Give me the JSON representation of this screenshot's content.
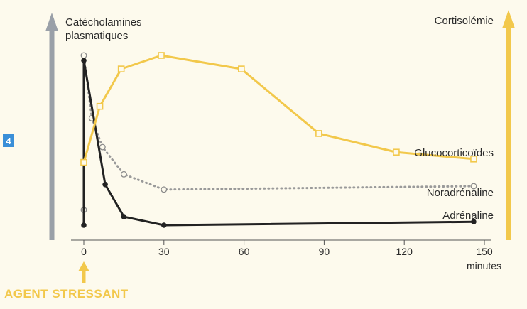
{
  "figure_number": "4",
  "chart_data": {
    "type": "line",
    "left_axis_label": [
      "Catécholamines",
      "plasmatiques"
    ],
    "right_axis_label": "Cortisolémie",
    "x_ticks": [
      0,
      30,
      60,
      90,
      120,
      150
    ],
    "x_unit": "minutes",
    "xlim": [
      0,
      150
    ],
    "stimulus_label": "AGENT STRESSANT",
    "series": [
      {
        "name": "Glucocorticoïdes",
        "axis": "right",
        "color": "#f2c84b",
        "style": "solid",
        "marker": "open-square",
        "x": [
          0,
          6,
          14,
          29,
          59,
          88,
          117,
          146
        ],
        "y": [
          0.37,
          0.7,
          0.92,
          1.0,
          0.92,
          0.54,
          0.43,
          0.39
        ]
      },
      {
        "name": "Noradrénaline",
        "axis": "left",
        "color": "#9a9a9a",
        "style": "dotted",
        "marker": "open-circle",
        "x": [
          0,
          0,
          3,
          7,
          15,
          30,
          146
        ],
        "y": [
          0.09,
          1.0,
          0.63,
          0.46,
          0.3,
          0.21,
          0.23
        ]
      },
      {
        "name": "Adrénaline",
        "axis": "left",
        "color": "#222222",
        "style": "solid",
        "marker": "filled-circle",
        "x": [
          0,
          0,
          8,
          15,
          30,
          146
        ],
        "y": [
          0.0,
          0.97,
          0.24,
          0.05,
          0.0,
          0.02
        ]
      }
    ]
  }
}
